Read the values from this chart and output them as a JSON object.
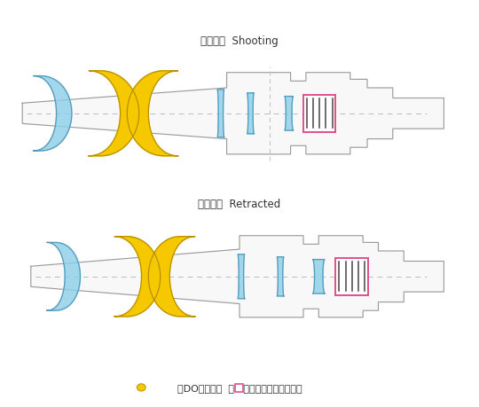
{
  "title_shooting": "撮影状態  Shooting",
  "title_retracted": "沈胴状態  Retracted",
  "legend_text": "はDOレンズ、  はISユニットを表します。",
  "bg_color": "#ffffff",
  "body_edge": "#999999",
  "body_fill": "#f8f8f8",
  "blue_fill": "#8CCFE8",
  "blue_edge": "#5599bb",
  "yellow_fill": "#F5C800",
  "yellow_edge": "#B89000",
  "dark_fill": "#444444",
  "pink_edge": "#E0508A",
  "axis_color": "#bbbbbb",
  "text_color": "#333333",
  "legend_yellow": "#F5C800",
  "legend_pink": "#E0508A"
}
